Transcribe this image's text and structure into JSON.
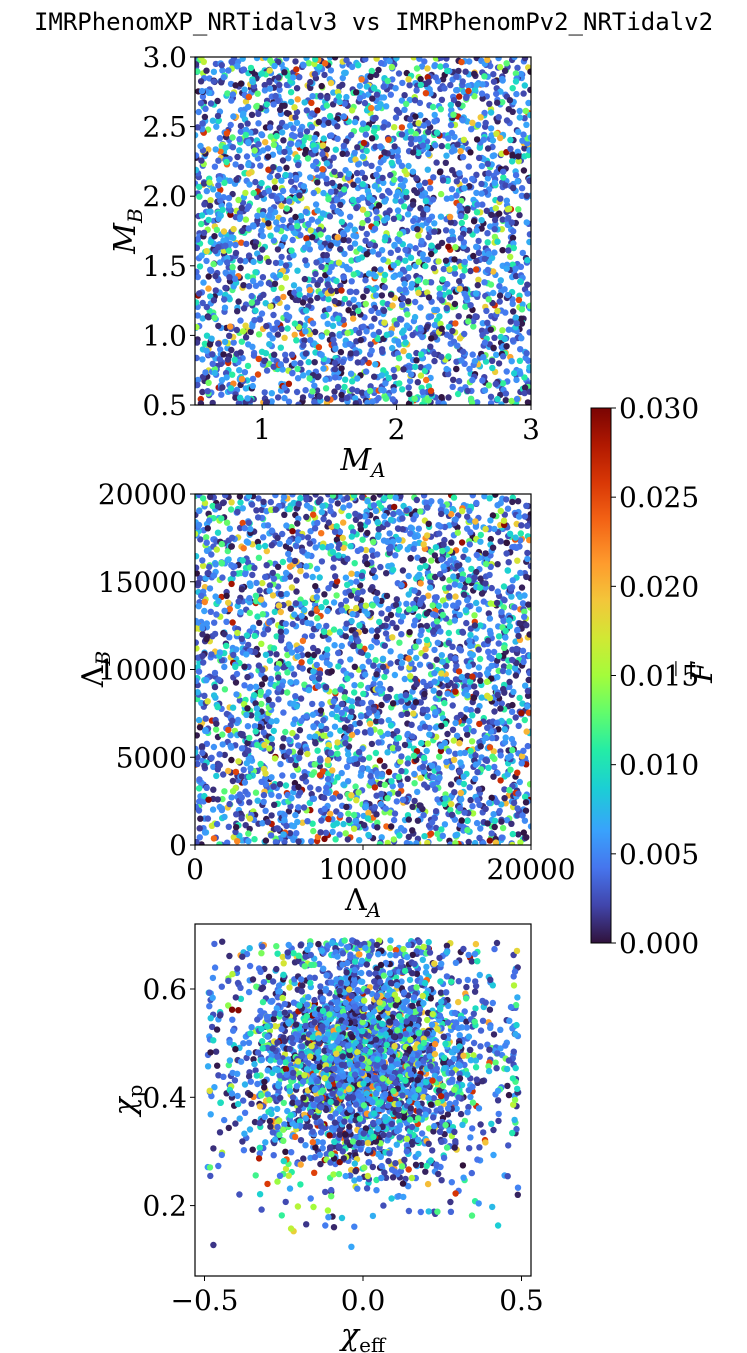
{
  "title": "IMRPhenomXP_NRTidalv3 vs IMRPhenomPv2_NRTidalv2",
  "colors": {
    "colormap": "turbo",
    "colormap_stops": [
      "#30123b",
      "#4145ab",
      "#4675ed",
      "#39a2fc",
      "#1bcfd4",
      "#24eca6",
      "#61fc6c",
      "#a4fc3b",
      "#d1e834",
      "#f3c63a",
      "#fe9b2d",
      "#f36315",
      "#d93806",
      "#b11901",
      "#7a0403"
    ]
  },
  "colorbar": {
    "label": "F̄",
    "range": [
      0.0,
      0.03
    ],
    "ticks": [
      "0.000",
      "0.005",
      "0.010",
      "0.015",
      "0.020",
      "0.025",
      "0.030"
    ]
  },
  "chart_data": [
    {
      "type": "scatter",
      "xlabel": "M_A",
      "ylabel": "M_B",
      "xlim": [
        0.5,
        3.0
      ],
      "ylim": [
        0.5,
        3.0
      ],
      "xticks": [
        "1",
        "2",
        "3"
      ],
      "yticks": [
        "0.5",
        "1.0",
        "1.5",
        "2.0",
        "2.5",
        "3.0"
      ],
      "distribution": "uniform",
      "n_points": 3000,
      "color_by": "F̄"
    },
    {
      "type": "scatter",
      "xlabel": "Λ_A",
      "ylabel": "Λ_B",
      "xlim": [
        0,
        20000
      ],
      "ylim": [
        0,
        20000
      ],
      "xticks": [
        "0",
        "10000",
        "20000"
      ],
      "yticks": [
        "0",
        "5000",
        "10000",
        "15000",
        "20000"
      ],
      "distribution": "uniform",
      "n_points": 3000,
      "color_by": "F̄"
    },
    {
      "type": "scatter",
      "xlabel": "χ_eff",
      "ylabel": "χ_p",
      "xlim": [
        -0.53,
        0.53
      ],
      "ylim": [
        0.07,
        0.72
      ],
      "xticks": [
        "−0.5",
        "0.0",
        "0.5"
      ],
      "yticks": [
        "0.2",
        "0.4",
        "0.6"
      ],
      "distribution": "centered cluster, x≈0.0±0.2, y≈0.47±0.12",
      "n_points": 3000,
      "color_by": "F̄"
    }
  ]
}
